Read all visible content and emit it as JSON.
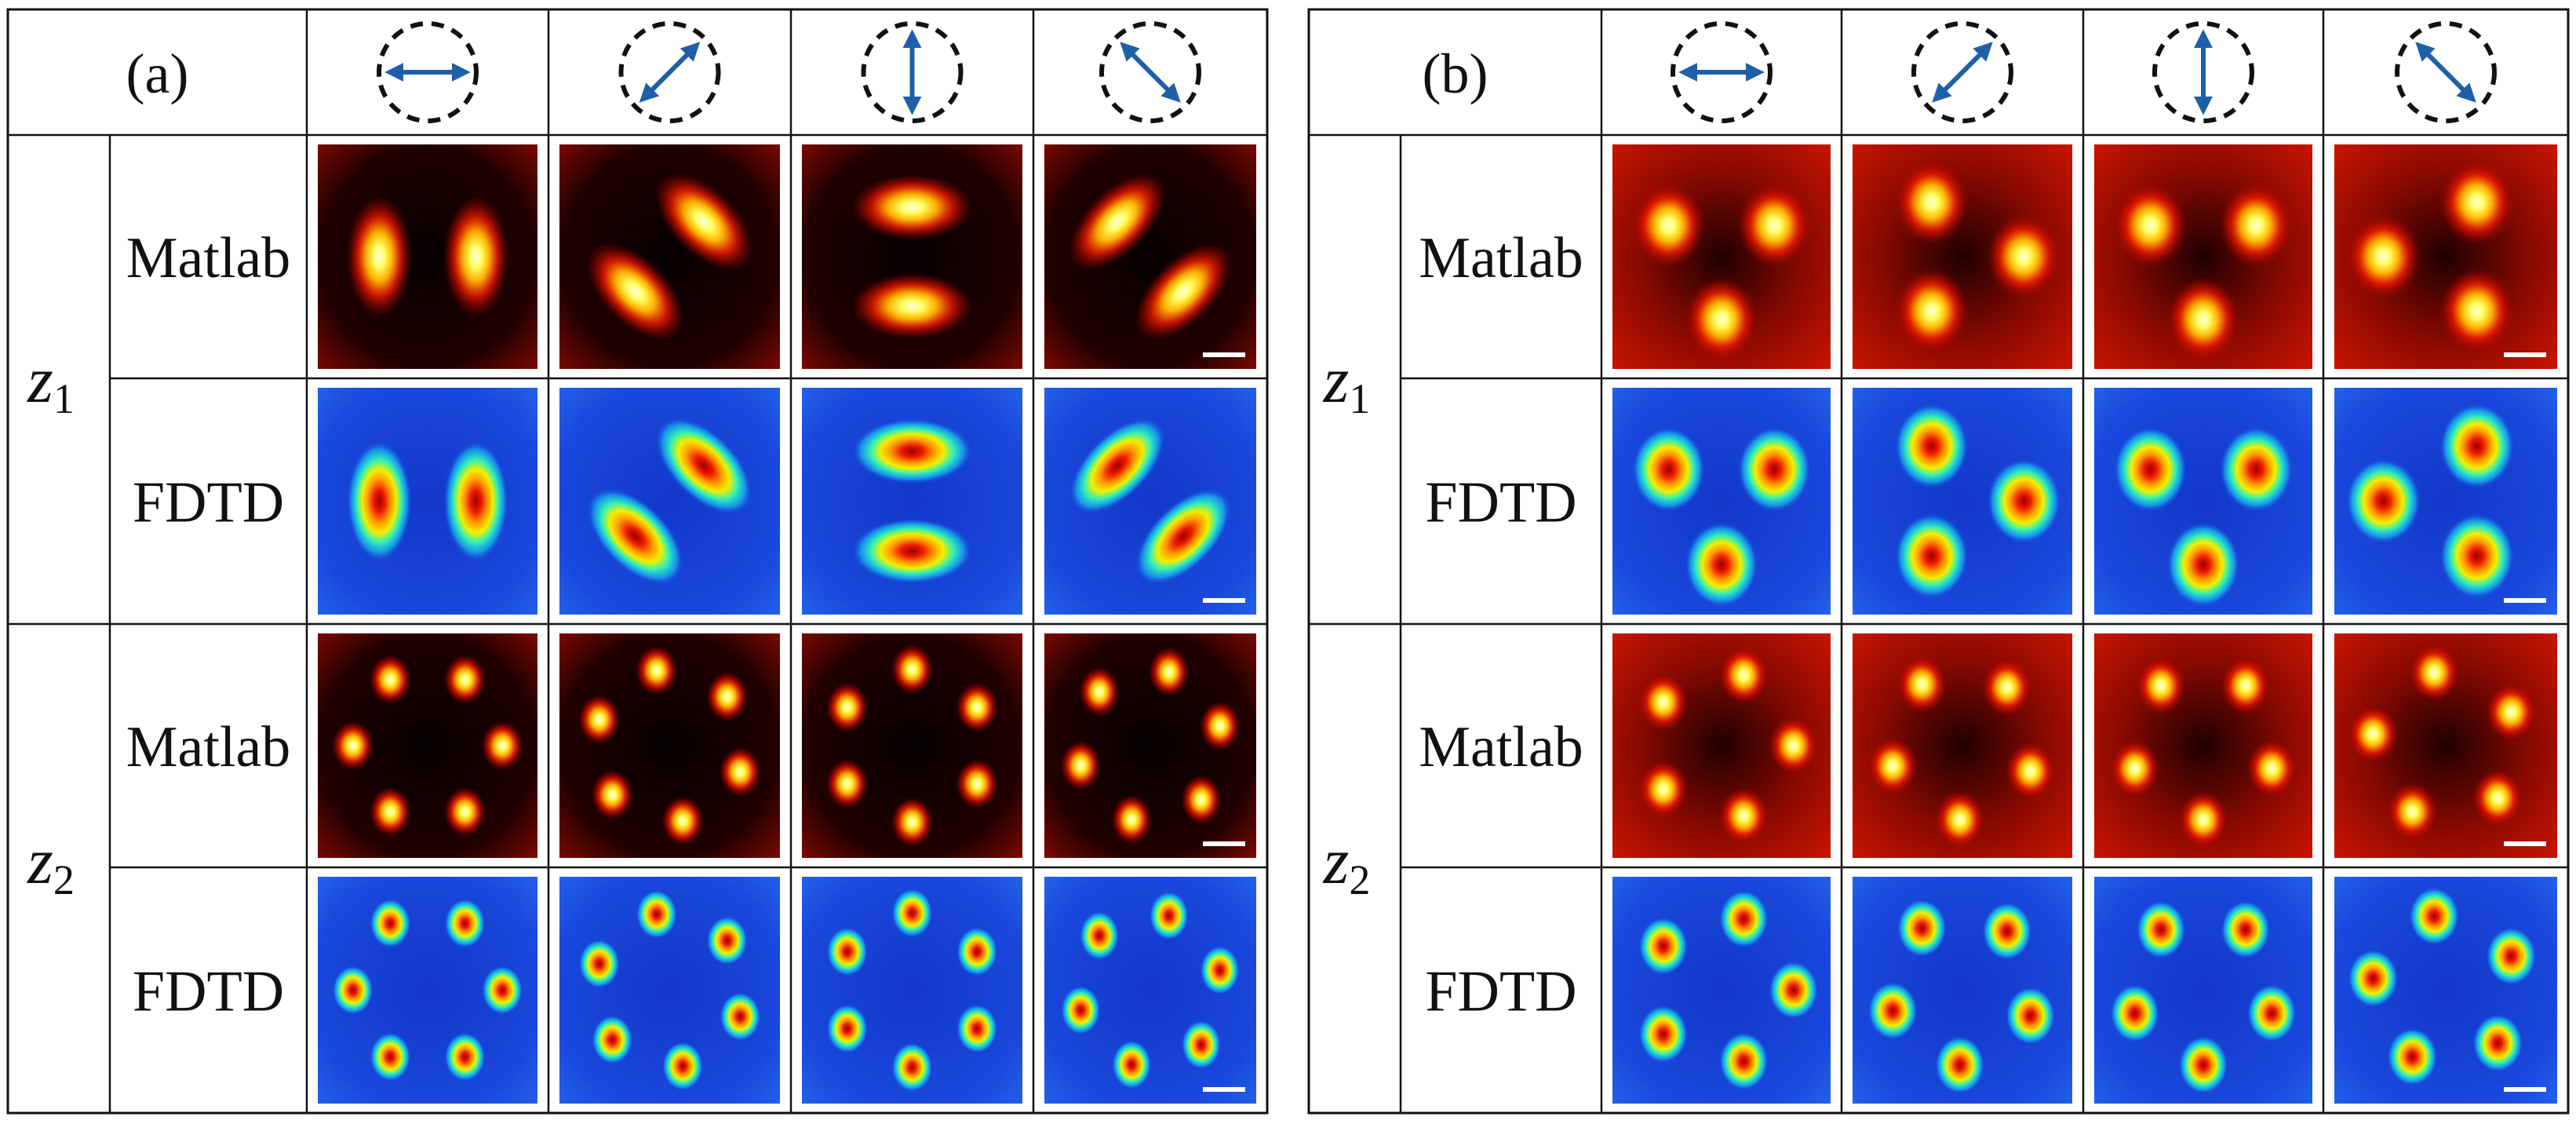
{
  "panels": [
    {
      "label": "(a)",
      "z_labels": [
        {
          "var": "z",
          "sub": "1"
        },
        {
          "var": "z",
          "sub": "2"
        }
      ],
      "row_labels": [
        "Matlab",
        "FDTD",
        "Matlab",
        "FDTD"
      ],
      "polarization_icons": [
        "arrow-horizontal-icon",
        "arrow-diagonal-up-icon",
        "arrow-vertical-icon",
        "arrow-diagonal-down-icon"
      ],
      "rows": [
        {
          "method": "Matlab",
          "colormap": "hot",
          "pattern": "two-lobe",
          "lobes": 2
        },
        {
          "method": "FDTD",
          "colormap": "jet",
          "pattern": "two-lobe",
          "lobes": 2
        },
        {
          "method": "Matlab",
          "colormap": "hot",
          "pattern": "ring",
          "lobes": 6
        },
        {
          "method": "FDTD",
          "colormap": "jet",
          "pattern": "ring",
          "lobes": 6
        }
      ]
    },
    {
      "label": "(b)",
      "z_labels": [
        {
          "var": "z",
          "sub": "1"
        },
        {
          "var": "z",
          "sub": "2"
        }
      ],
      "row_labels": [
        "Matlab",
        "FDTD",
        "Matlab",
        "FDTD"
      ],
      "polarization_icons": [
        "arrow-horizontal-icon",
        "arrow-diagonal-up-icon",
        "arrow-vertical-icon",
        "arrow-diagonal-down-icon"
      ],
      "rows": [
        {
          "method": "Matlab",
          "colormap": "hot",
          "pattern": "three-lobe",
          "lobes": 3
        },
        {
          "method": "FDTD",
          "colormap": "jet",
          "pattern": "three-lobe",
          "lobes": 3
        },
        {
          "method": "Matlab",
          "colormap": "hot",
          "pattern": "ring",
          "lobes": 5
        },
        {
          "method": "FDTD",
          "colormap": "jet",
          "pattern": "ring",
          "lobes": 5
        }
      ]
    }
  ],
  "colors": {
    "arrow": "#1f5fa8",
    "border": "#111111",
    "hot_background": "#000000",
    "jet_background": "#1432d2"
  }
}
